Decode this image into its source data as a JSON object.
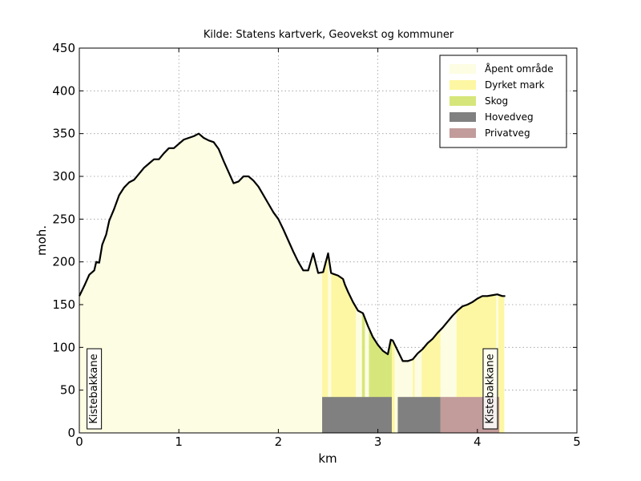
{
  "chart_data": {
    "type": "area",
    "title": "Kilde: Statens kartverk, Geovekst og kommuner",
    "xlabel": "km",
    "ylabel": "moh.",
    "xlim": [
      0,
      5
    ],
    "ylim": [
      0,
      450
    ],
    "xticks": [
      "0",
      "1",
      "2",
      "3",
      "4",
      "5"
    ],
    "yticks": [
      "0",
      "50",
      "100",
      "150",
      "200",
      "250",
      "300",
      "350",
      "400",
      "450"
    ],
    "grid": true,
    "legend_position": "top-right",
    "legend": [
      {
        "label": "Åpent område",
        "color": "#fdfde3"
      },
      {
        "label": "Dyrket mark",
        "color": "#fdf7a3"
      },
      {
        "label": "Skog",
        "color": "#d7e67a"
      },
      {
        "label": "Hovedveg",
        "color": "#808080"
      },
      {
        "label": "Privatveg",
        "color": "#c29b9b"
      }
    ],
    "profile": {
      "x": [
        0,
        0.05,
        0.1,
        0.15,
        0.17,
        0.2,
        0.23,
        0.27,
        0.3,
        0.35,
        0.4,
        0.45,
        0.5,
        0.55,
        0.6,
        0.65,
        0.7,
        0.75,
        0.8,
        0.85,
        0.9,
        0.95,
        1.0,
        1.05,
        1.1,
        1.15,
        1.2,
        1.25,
        1.3,
        1.35,
        1.4,
        1.45,
        1.5,
        1.55,
        1.6,
        1.65,
        1.7,
        1.75,
        1.8,
        1.85,
        1.9,
        1.95,
        2.0,
        2.05,
        2.1,
        2.15,
        2.2,
        2.25,
        2.3,
        2.35,
        2.4,
        2.45,
        2.5,
        2.53,
        2.55,
        2.6,
        2.65,
        2.67,
        2.7,
        2.75,
        2.8,
        2.85,
        2.9,
        2.95,
        3.0,
        3.05,
        3.1,
        3.13,
        3.15,
        3.2,
        3.25,
        3.3,
        3.35,
        3.4,
        3.45,
        3.5,
        3.55,
        3.6,
        3.65,
        3.7,
        3.75,
        3.8,
        3.85,
        3.9,
        3.95,
        4.0,
        4.05,
        4.1,
        4.15,
        4.2,
        4.25,
        4.28
      ],
      "y": [
        160,
        172,
        185,
        190,
        200,
        199,
        220,
        232,
        248,
        262,
        278,
        287,
        293,
        296,
        303,
        310,
        315,
        320,
        320,
        327,
        333,
        333,
        338,
        343,
        345,
        347,
        350,
        345,
        342,
        340,
        332,
        318,
        305,
        292,
        294,
        300,
        300,
        295,
        288,
        278,
        268,
        258,
        250,
        238,
        225,
        212,
        200,
        190,
        190,
        210,
        187,
        188,
        210,
        187,
        186,
        184,
        180,
        173,
        165,
        153,
        143,
        140,
        125,
        112,
        103,
        96,
        92,
        109,
        108,
        96,
        84,
        84,
        86,
        93,
        98,
        105,
        110,
        117,
        123,
        130,
        137,
        143,
        148,
        150,
        153,
        157,
        160,
        160,
        161,
        162,
        160,
        160
      ]
    },
    "land_use": [
      {
        "type": "Åpent område",
        "x_start": 0,
        "x_end": 2.44
      },
      {
        "type": "Dyrket mark",
        "x_start": 2.44,
        "x_end": 2.5
      },
      {
        "type": "Åpent område",
        "x_start": 2.5,
        "x_end": 2.53
      },
      {
        "type": "Dyrket mark",
        "x_start": 2.53,
        "x_end": 2.78
      },
      {
        "type": "Åpent område",
        "x_start": 2.78,
        "x_end": 2.84
      },
      {
        "type": "Skog",
        "x_start": 2.84,
        "x_end": 2.87
      },
      {
        "type": "Åpent område",
        "x_start": 2.87,
        "x_end": 2.91
      },
      {
        "type": "Skog",
        "x_start": 2.91,
        "x_end": 3.14
      },
      {
        "type": "Dyrket mark",
        "x_start": 3.14,
        "x_end": 3.17
      },
      {
        "type": "Åpent område",
        "x_start": 3.17,
        "x_end": 3.35
      },
      {
        "type": "Dyrket mark",
        "x_start": 3.35,
        "x_end": 3.37
      },
      {
        "type": "Åpent område",
        "x_start": 3.37,
        "x_end": 3.44
      },
      {
        "type": "Dyrket mark",
        "x_start": 3.44,
        "x_end": 3.63
      },
      {
        "type": "Åpent område",
        "x_start": 3.63,
        "x_end": 3.79
      },
      {
        "type": "Dyrket mark",
        "x_start": 3.79,
        "x_end": 4.19
      },
      {
        "type": "Åpent område",
        "x_start": 4.19,
        "x_end": 4.21
      },
      {
        "type": "Dyrket mark",
        "x_start": 4.21,
        "x_end": 4.27
      }
    ],
    "road": [
      {
        "type": "Hovedveg",
        "x_start": 2.44,
        "x_end": 3.14
      },
      {
        "type": "Hovedveg",
        "x_start": 3.2,
        "x_end": 3.63
      },
      {
        "type": "Privatveg",
        "x_start": 3.63,
        "x_end": 4.22
      }
    ],
    "road_band_height": 42,
    "annotations": [
      {
        "text": "Kistebakkane",
        "x": 0.15
      },
      {
        "text": "Kistebakkane",
        "x": 4.13
      }
    ]
  }
}
